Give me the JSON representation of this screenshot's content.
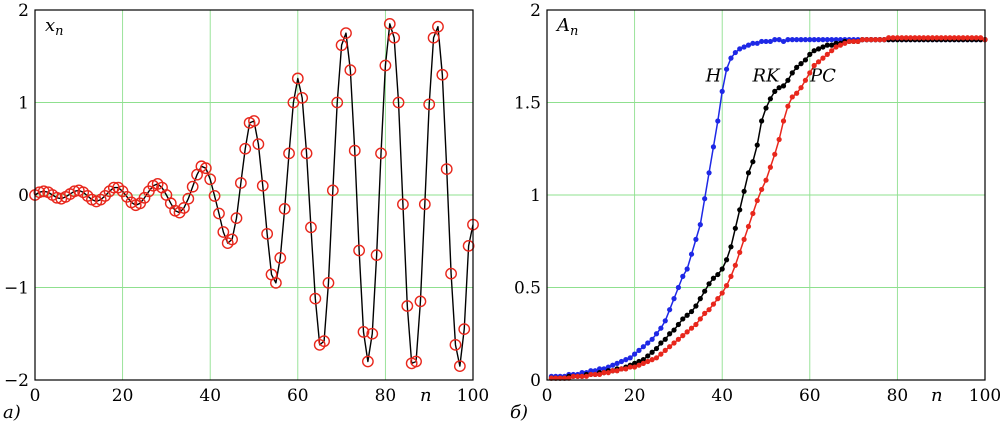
{
  "chart_data": [
    {
      "panel_label": "а)",
      "type": "line",
      "title": "",
      "ylabel": "x_n",
      "ylabel_main": "x",
      "ylabel_sub": "n",
      "xlabel": "n",
      "xlim": [
        0,
        100
      ],
      "ylim": [
        -2,
        2
      ],
      "xticks": [
        0,
        20,
        40,
        60,
        80,
        100
      ],
      "yticks": [
        -2,
        -1,
        0,
        1,
        2
      ],
      "xtick_labels": [
        "0",
        "20",
        "40",
        "60",
        "80",
        "100"
      ],
      "ytick_labels": [
        "−2",
        "−1",
        "0",
        "1",
        "2"
      ],
      "grid": true,
      "series": [
        {
          "style": "line",
          "color": "#000000",
          "x": [
            0,
            1,
            2,
            3,
            4,
            5,
            6,
            7,
            8,
            9,
            10,
            11,
            12,
            13,
            14,
            15,
            16,
            17,
            18,
            19,
            20,
            21,
            22,
            23,
            24,
            25,
            26,
            27,
            28,
            29,
            30,
            31,
            32,
            33,
            34,
            35,
            36,
            37,
            38,
            39,
            40,
            41,
            42,
            43,
            44,
            45,
            46,
            47,
            48,
            49,
            50,
            51,
            52,
            53,
            54,
            55,
            56,
            57,
            58,
            59,
            60,
            61,
            62,
            63,
            64,
            65,
            66,
            67,
            68,
            69,
            70,
            71,
            72,
            73,
            74,
            75,
            76,
            77,
            78,
            79,
            80,
            81,
            82,
            83,
            84,
            85,
            86,
            87,
            88,
            89,
            90,
            91,
            92,
            93,
            94,
            95,
            96,
            97,
            98,
            99,
            100
          ],
          "y": [
            0.0,
            0.03,
            0.04,
            0.03,
            0.0,
            -0.03,
            -0.04,
            -0.02,
            0.01,
            0.04,
            0.05,
            0.03,
            -0.01,
            -0.05,
            -0.07,
            -0.05,
            -0.01,
            0.04,
            0.08,
            0.08,
            0.04,
            -0.02,
            -0.08,
            -0.11,
            -0.09,
            -0.03,
            0.04,
            0.1,
            0.12,
            0.08,
            0.0,
            -0.09,
            -0.17,
            -0.19,
            -0.14,
            -0.04,
            0.09,
            0.22,
            0.31,
            0.29,
            0.17,
            -0.01,
            -0.2,
            -0.4,
            -0.52,
            -0.48,
            -0.25,
            0.13,
            0.5,
            0.78,
            0.8,
            0.55,
            0.1,
            -0.42,
            -0.86,
            -0.95,
            -0.68,
            -0.15,
            0.45,
            1.0,
            1.26,
            1.05,
            0.45,
            -0.35,
            -1.12,
            -1.62,
            -1.58,
            -0.95,
            0.05,
            1.0,
            1.62,
            1.75,
            1.35,
            0.48,
            -0.6,
            -1.48,
            -1.8,
            -1.5,
            -0.65,
            0.45,
            1.4,
            1.85,
            1.7,
            1.0,
            -0.1,
            -1.2,
            -1.82,
            -1.8,
            -1.15,
            -0.1,
            0.98,
            1.7,
            1.82,
            1.3,
            0.28,
            -0.85,
            -1.62,
            -1.85,
            -1.45,
            -0.55,
            -0.32
          ]
        },
        {
          "style": "circle",
          "color": "#e8271c",
          "x": [
            0,
            1,
            2,
            3,
            4,
            5,
            6,
            7,
            8,
            9,
            10,
            11,
            12,
            13,
            14,
            15,
            16,
            17,
            18,
            19,
            20,
            21,
            22,
            23,
            24,
            25,
            26,
            27,
            28,
            29,
            30,
            31,
            32,
            33,
            34,
            35,
            36,
            37,
            38,
            39,
            40,
            41,
            42,
            43,
            44,
            45,
            46,
            47,
            48,
            49,
            50,
            51,
            52,
            53,
            54,
            55,
            56,
            57,
            58,
            59,
            60,
            61,
            62,
            63,
            64,
            65,
            66,
            67,
            68,
            69,
            70,
            71,
            72,
            73,
            74,
            75,
            76,
            77,
            78,
            79,
            80,
            81,
            82,
            83,
            84,
            85,
            86,
            87,
            88,
            89,
            90,
            91,
            92,
            93,
            94,
            95,
            96,
            97,
            98,
            99,
            100
          ],
          "y": [
            0.0,
            0.03,
            0.04,
            0.03,
            0.0,
            -0.03,
            -0.04,
            -0.02,
            0.01,
            0.04,
            0.05,
            0.03,
            -0.01,
            -0.05,
            -0.07,
            -0.05,
            -0.01,
            0.04,
            0.08,
            0.08,
            0.04,
            -0.02,
            -0.08,
            -0.11,
            -0.09,
            -0.03,
            0.04,
            0.1,
            0.12,
            0.08,
            0.0,
            -0.09,
            -0.17,
            -0.19,
            -0.14,
            -0.04,
            0.09,
            0.22,
            0.31,
            0.29,
            0.17,
            -0.01,
            -0.2,
            -0.4,
            -0.52,
            -0.48,
            -0.25,
            0.13,
            0.5,
            0.78,
            0.8,
            0.55,
            0.1,
            -0.42,
            -0.86,
            -0.95,
            -0.68,
            -0.15,
            0.45,
            1.0,
            1.26,
            1.05,
            0.45,
            -0.35,
            -1.12,
            -1.62,
            -1.58,
            -0.95,
            0.05,
            1.0,
            1.62,
            1.75,
            1.35,
            0.48,
            -0.6,
            -1.48,
            -1.8,
            -1.5,
            -0.65,
            0.45,
            1.4,
            1.85,
            1.7,
            1.0,
            -0.1,
            -1.2,
            -1.82,
            -1.8,
            -1.15,
            -0.1,
            0.98,
            1.7,
            1.82,
            1.3,
            0.28,
            -0.85,
            -1.62,
            -1.85,
            -1.45,
            -0.55,
            -0.32
          ]
        }
      ]
    },
    {
      "panel_label": "б)",
      "type": "line",
      "title": "",
      "ylabel": "A_n",
      "ylabel_main": "A",
      "ylabel_sub": "n",
      "xlabel": "n",
      "xlim": [
        0,
        100
      ],
      "ylim": [
        0,
        2
      ],
      "xticks": [
        0,
        20,
        40,
        60,
        80,
        100
      ],
      "yticks": [
        0,
        0.5,
        1,
        1.5,
        2
      ],
      "xtick_labels": [
        "0",
        "20",
        "40",
        "60",
        "80",
        "100"
      ],
      "ytick_labels": [
        "0",
        "0.5",
        "1",
        "1.5",
        "2"
      ],
      "grid": true,
      "series": [
        {
          "name": "H",
          "color": "#1e28e6",
          "label_at": [
            38,
            1.58
          ],
          "x": [
            1,
            2,
            3,
            4,
            5,
            6,
            7,
            8,
            9,
            10,
            11,
            12,
            13,
            14,
            15,
            16,
            17,
            18,
            19,
            20,
            21,
            22,
            23,
            24,
            25,
            26,
            27,
            28,
            29,
            30,
            31,
            32,
            33,
            34,
            35,
            36,
            37,
            38,
            39,
            40,
            41,
            42,
            43,
            44,
            45,
            46,
            47,
            48,
            49,
            50,
            51,
            52,
            53,
            54,
            55,
            56,
            57,
            58,
            59,
            60,
            61,
            62,
            63,
            64,
            65,
            66,
            67,
            68,
            69,
            70,
            71,
            72,
            73,
            74,
            75,
            76,
            77,
            78,
            79,
            80,
            81,
            82,
            83,
            84,
            85,
            86,
            87,
            88,
            89,
            90,
            91,
            92,
            93,
            94,
            95,
            96,
            97,
            98,
            99,
            100
          ],
          "y": [
            0.02,
            0.02,
            0.02,
            0.02,
            0.03,
            0.03,
            0.03,
            0.04,
            0.04,
            0.05,
            0.05,
            0.06,
            0.06,
            0.07,
            0.08,
            0.09,
            0.1,
            0.11,
            0.12,
            0.14,
            0.16,
            0.18,
            0.2,
            0.22,
            0.25,
            0.28,
            0.32,
            0.38,
            0.44,
            0.5,
            0.56,
            0.6,
            0.68,
            0.76,
            0.84,
            0.98,
            1.12,
            1.26,
            1.4,
            1.56,
            1.68,
            1.74,
            1.77,
            1.79,
            1.8,
            1.81,
            1.82,
            1.82,
            1.83,
            1.83,
            1.83,
            1.84,
            1.84,
            1.83,
            1.84,
            1.84,
            1.84,
            1.84,
            1.84,
            1.84,
            1.84,
            1.84,
            1.84,
            1.84,
            1.84,
            1.84,
            1.84,
            1.84,
            1.84,
            1.84,
            1.84,
            1.84,
            1.84,
            1.84,
            1.84,
            1.84,
            1.84,
            1.84,
            1.84,
            1.84,
            1.84,
            1.84,
            1.84,
            1.84,
            1.84,
            1.84,
            1.84,
            1.84,
            1.84,
            1.84,
            1.84,
            1.84,
            1.84,
            1.84,
            1.84,
            1.84,
            1.84,
            1.84,
            1.84,
            1.84
          ]
        },
        {
          "name": "RK",
          "color": "#000000",
          "label_at": [
            50,
            1.58
          ],
          "x": [
            1,
            2,
            3,
            4,
            5,
            6,
            7,
            8,
            9,
            10,
            11,
            12,
            13,
            14,
            15,
            16,
            17,
            18,
            19,
            20,
            21,
            22,
            23,
            24,
            25,
            26,
            27,
            28,
            29,
            30,
            31,
            32,
            33,
            34,
            35,
            36,
            37,
            38,
            39,
            40,
            41,
            42,
            43,
            44,
            45,
            46,
            47,
            48,
            49,
            50,
            51,
            52,
            53,
            54,
            55,
            56,
            57,
            58,
            59,
            60,
            61,
            62,
            63,
            64,
            65,
            66,
            67,
            68,
            69,
            70,
            71,
            72,
            73,
            74,
            75,
            76,
            77,
            78,
            79,
            80,
            81,
            82,
            83,
            84,
            85,
            86,
            87,
            88,
            89,
            90,
            91,
            92,
            93,
            94,
            95,
            96,
            97,
            98,
            99,
            100
          ],
          "y": [
            0.01,
            0.01,
            0.01,
            0.01,
            0.02,
            0.02,
            0.02,
            0.02,
            0.03,
            0.03,
            0.03,
            0.04,
            0.04,
            0.05,
            0.05,
            0.06,
            0.06,
            0.07,
            0.08,
            0.09,
            0.1,
            0.11,
            0.13,
            0.15,
            0.17,
            0.2,
            0.22,
            0.25,
            0.27,
            0.3,
            0.33,
            0.35,
            0.37,
            0.4,
            0.44,
            0.48,
            0.52,
            0.55,
            0.57,
            0.6,
            0.65,
            0.72,
            0.82,
            0.92,
            1.02,
            1.12,
            1.18,
            1.27,
            1.4,
            1.47,
            1.52,
            1.56,
            1.58,
            1.59,
            1.62,
            1.66,
            1.69,
            1.71,
            1.73,
            1.76,
            1.78,
            1.79,
            1.8,
            1.81,
            1.81,
            1.82,
            1.82,
            1.83,
            1.83,
            1.83,
            1.83,
            1.84,
            1.84,
            1.84,
            1.84,
            1.84,
            1.84,
            1.84,
            1.84,
            1.84,
            1.84,
            1.84,
            1.84,
            1.84,
            1.84,
            1.84,
            1.84,
            1.84,
            1.84,
            1.84,
            1.84,
            1.84,
            1.84,
            1.84,
            1.84,
            1.84,
            1.84,
            1.84,
            1.84,
            1.84
          ]
        },
        {
          "name": "PC",
          "color": "#e8271c",
          "label_at": [
            63,
            1.58
          ],
          "x": [
            1,
            2,
            3,
            4,
            5,
            6,
            7,
            8,
            9,
            10,
            11,
            12,
            13,
            14,
            15,
            16,
            17,
            18,
            19,
            20,
            21,
            22,
            23,
            24,
            25,
            26,
            27,
            28,
            29,
            30,
            31,
            32,
            33,
            34,
            35,
            36,
            37,
            38,
            39,
            40,
            41,
            42,
            43,
            44,
            45,
            46,
            47,
            48,
            49,
            50,
            51,
            52,
            53,
            54,
            55,
            56,
            57,
            58,
            59,
            60,
            61,
            62,
            63,
            64,
            65,
            66,
            67,
            68,
            69,
            70,
            71,
            72,
            73,
            74,
            75,
            76,
            77,
            78,
            79,
            80,
            81,
            82,
            83,
            84,
            85,
            86,
            87,
            88,
            89,
            90,
            91,
            92,
            93,
            94,
            95,
            96,
            97,
            98,
            99,
            100
          ],
          "y": [
            0.01,
            0.01,
            0.01,
            0.01,
            0.01,
            0.02,
            0.02,
            0.02,
            0.02,
            0.03,
            0.03,
            0.03,
            0.04,
            0.04,
            0.05,
            0.05,
            0.06,
            0.06,
            0.07,
            0.07,
            0.08,
            0.09,
            0.1,
            0.11,
            0.12,
            0.14,
            0.16,
            0.18,
            0.2,
            0.22,
            0.24,
            0.26,
            0.28,
            0.3,
            0.33,
            0.36,
            0.38,
            0.41,
            0.44,
            0.47,
            0.51,
            0.56,
            0.62,
            0.69,
            0.76,
            0.83,
            0.9,
            0.97,
            1.03,
            1.08,
            1.15,
            1.22,
            1.3,
            1.4,
            1.48,
            1.53,
            1.55,
            1.58,
            1.62,
            1.66,
            1.7,
            1.72,
            1.74,
            1.76,
            1.78,
            1.8,
            1.81,
            1.82,
            1.83,
            1.83,
            1.83,
            1.84,
            1.84,
            1.84,
            1.84,
            1.84,
            1.84,
            1.85,
            1.85,
            1.85,
            1.85,
            1.85,
            1.85,
            1.85,
            1.85,
            1.85,
            1.85,
            1.85,
            1.85,
            1.85,
            1.85,
            1.85,
            1.85,
            1.85,
            1.85,
            1.85,
            1.85,
            1.85,
            1.85,
            1.84
          ]
        }
      ]
    }
  ]
}
